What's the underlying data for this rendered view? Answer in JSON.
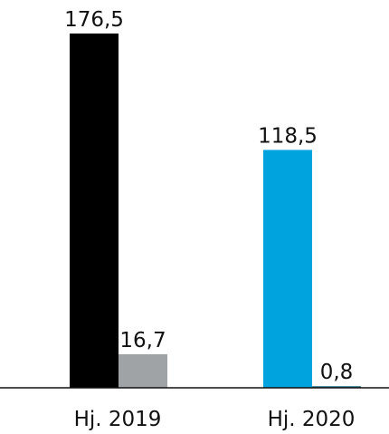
{
  "chart_data": {
    "type": "bar",
    "categories": [
      "Hj. 2019",
      "Hj. 2020"
    ],
    "series": [
      {
        "values": [
          176.5,
          118.5
        ]
      },
      {
        "values": [
          16.7,
          0.8
        ]
      }
    ],
    "value_labels": [
      [
        "176,5",
        "118,5"
      ],
      [
        "16,7",
        "0,8"
      ]
    ],
    "bar_colors": [
      [
        "#000000",
        "#00a3de"
      ],
      [
        "#a0a3a6",
        "#1f6f86"
      ]
    ],
    "baseline_color": "#111111",
    "grid": false,
    "legend": "none",
    "ylim": [
      0,
      176.5
    ]
  }
}
